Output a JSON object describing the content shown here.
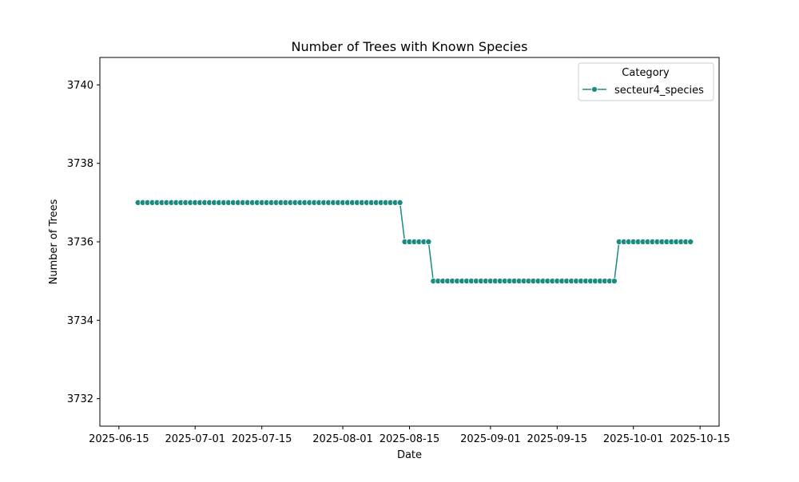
{
  "chart_data": {
    "type": "line",
    "title": "Number of Trees with Known Species",
    "xlabel": "Date",
    "ylabel": "Number of Trees",
    "x_tick_labels": [
      "2025-06-15",
      "2025-07-01",
      "2025-07-15",
      "2025-08-01",
      "2025-08-15",
      "2025-09-01",
      "2025-09-15",
      "2025-10-01",
      "2025-10-15"
    ],
    "y_tick_labels": [
      "3732",
      "3734",
      "3736",
      "3738",
      "3740"
    ],
    "xlim": [
      "2025-06-11",
      "2025-10-19"
    ],
    "ylim": [
      3731.3,
      3740.7
    ],
    "grid": false,
    "legend": {
      "title": "Category",
      "position": "top-right"
    },
    "series": [
      {
        "name": "secteur4_species",
        "color": "#1b8b82",
        "marker": "circle",
        "segments": [
          {
            "start": "2025-06-19",
            "end": "2025-08-13",
            "value": 3737
          },
          {
            "start": "2025-08-14",
            "end": "2025-08-19",
            "value": 3736
          },
          {
            "start": "2025-08-20",
            "end": "2025-09-27",
            "value": 3735
          },
          {
            "start": "2025-09-28",
            "end": "2025-10-13",
            "value": 3736
          }
        ]
      }
    ]
  }
}
